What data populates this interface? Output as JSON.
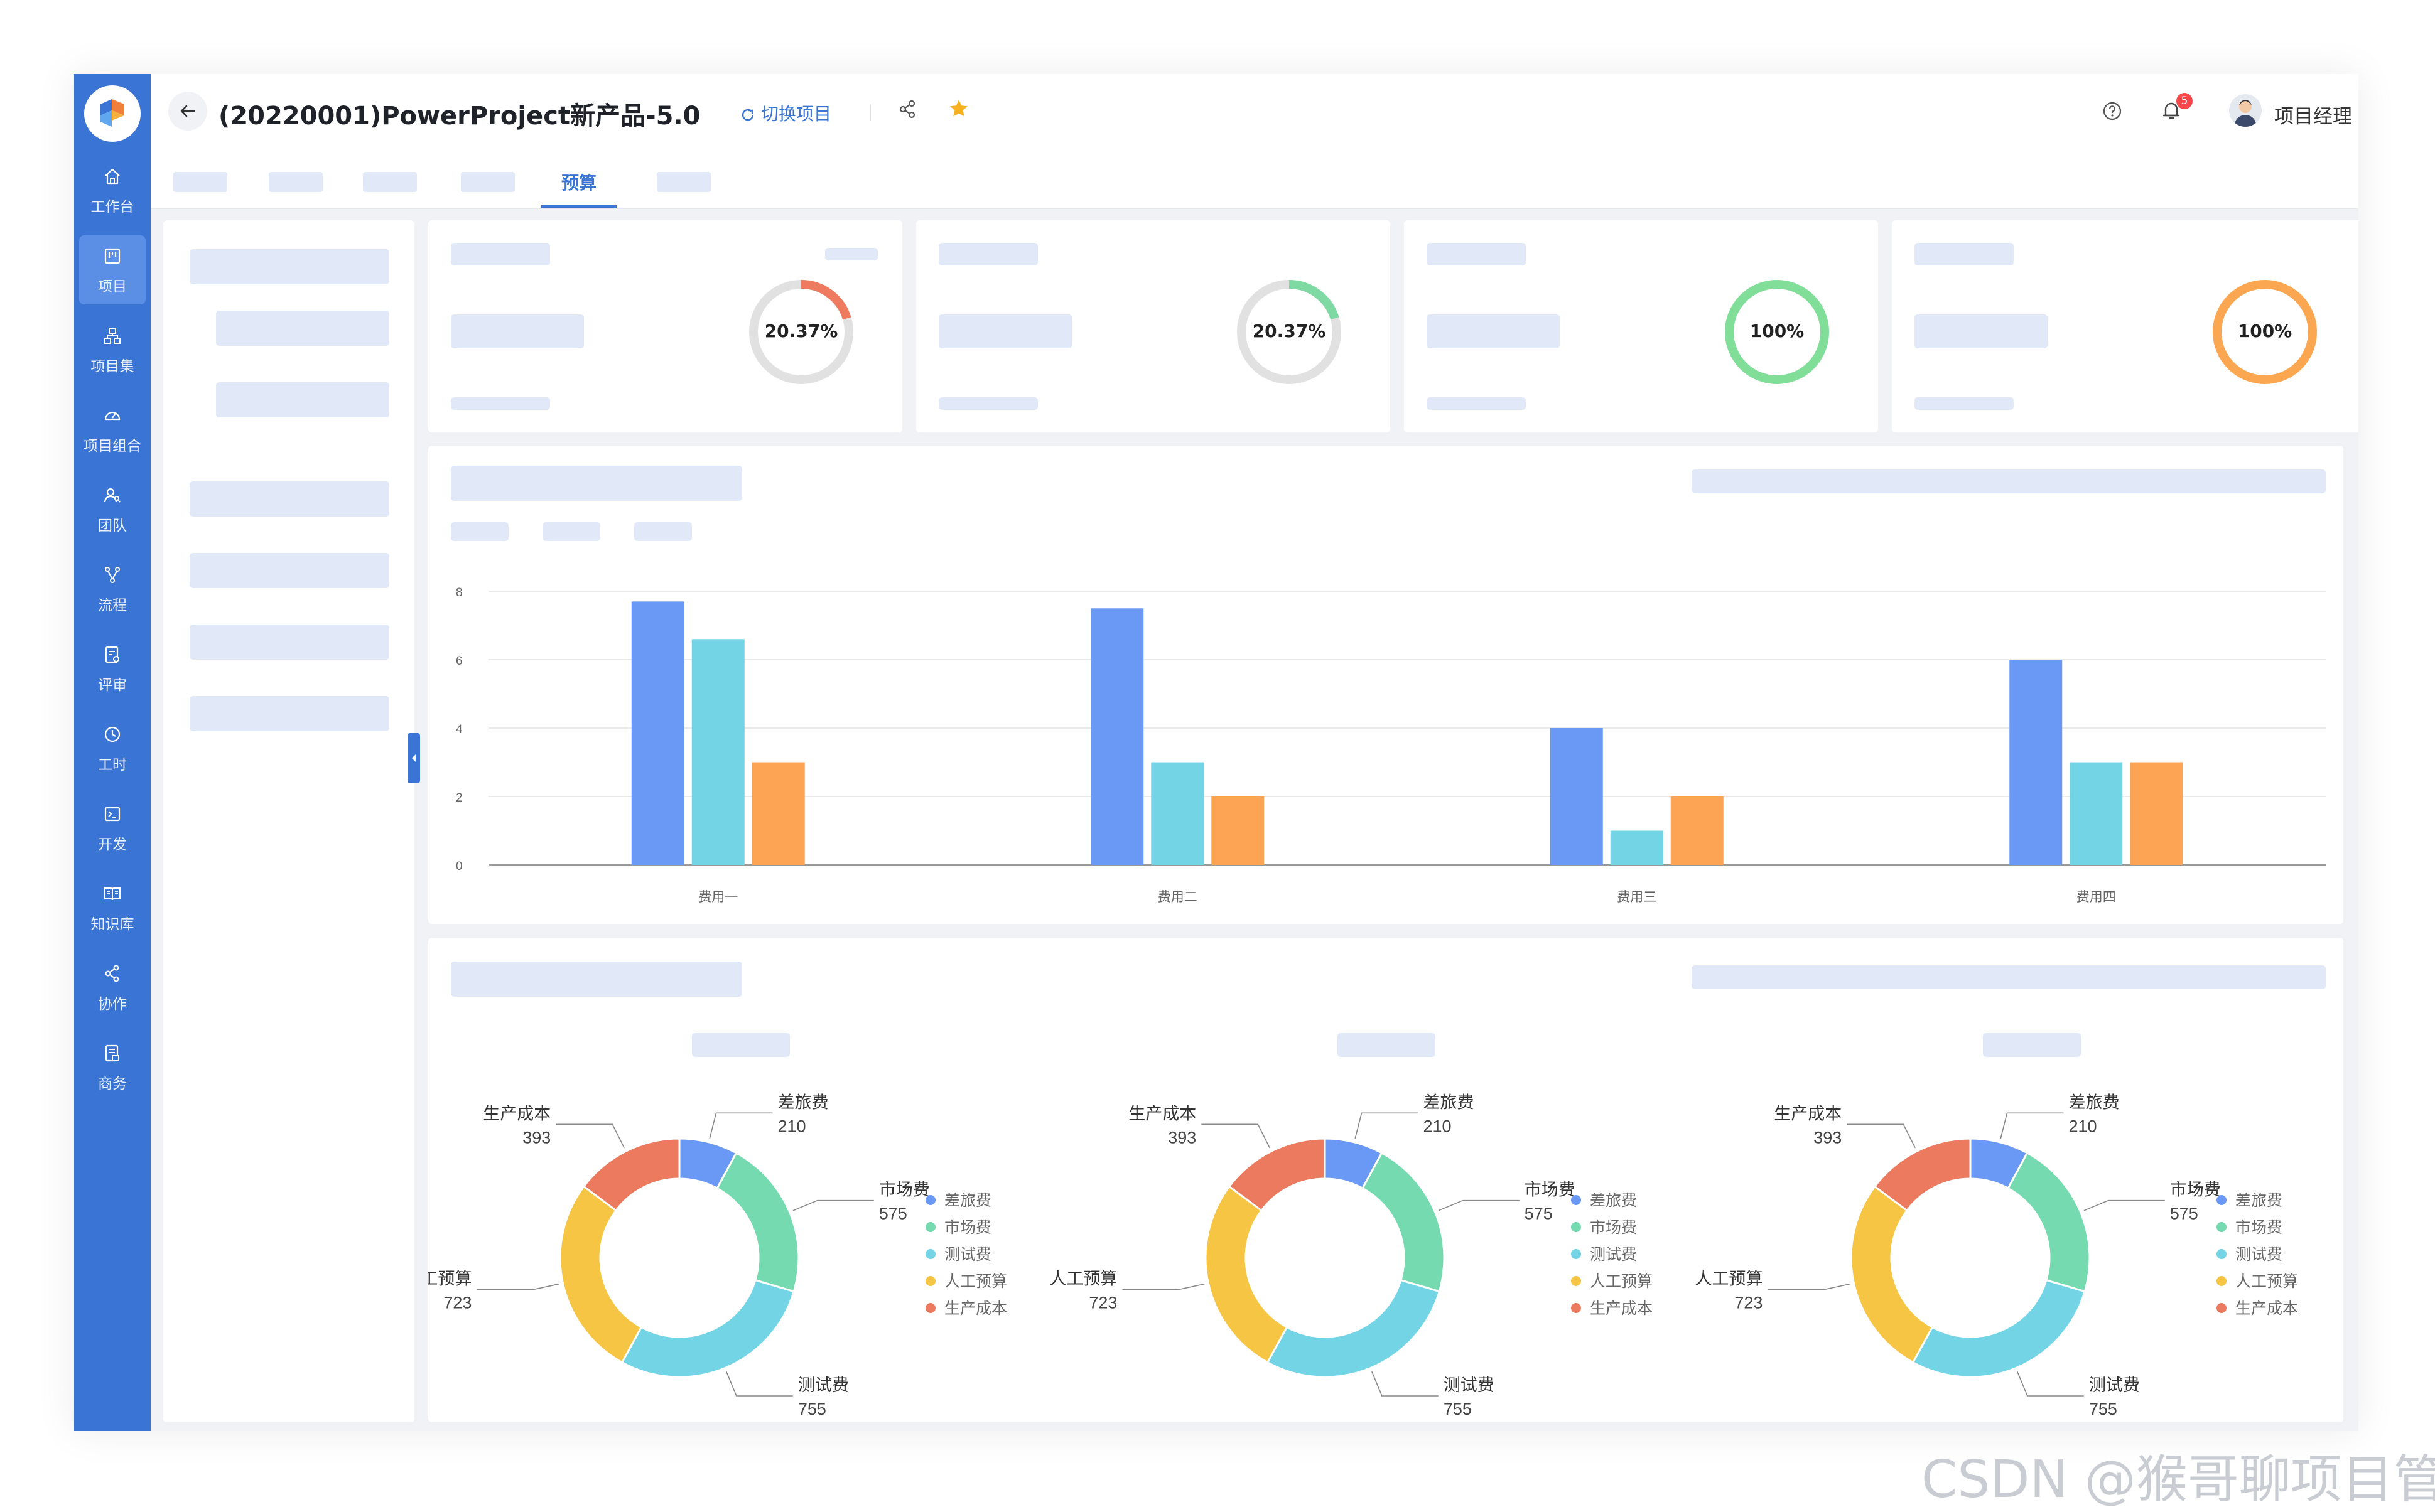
{
  "header": {
    "project_title": "(20220001)PowerProject新产品-5.0",
    "switch_label": "切换项目",
    "notification_count": "5",
    "user_name": "项目经理 PM"
  },
  "sidebar": {
    "items": [
      {
        "label": "工作台",
        "icon": "home-icon"
      },
      {
        "label": "项目",
        "icon": "kanban-icon",
        "active": true
      },
      {
        "label": "项目集",
        "icon": "hierarchy-icon"
      },
      {
        "label": "项目组合",
        "icon": "dashboard-icon"
      },
      {
        "label": "团队",
        "icon": "team-icon"
      },
      {
        "label": "流程",
        "icon": "flow-icon"
      },
      {
        "label": "评审",
        "icon": "review-icon"
      },
      {
        "label": "工时",
        "icon": "clock-icon"
      },
      {
        "label": "开发",
        "icon": "terminal-icon"
      },
      {
        "label": "知识库",
        "icon": "book-icon"
      },
      {
        "label": "协作",
        "icon": "share-icon"
      },
      {
        "label": "商务",
        "icon": "business-icon"
      }
    ]
  },
  "tabs": {
    "active_label": "预算"
  },
  "stats": [
    {
      "percent_label": "20.37%",
      "value": 0.2037,
      "color": "#ee7b5f"
    },
    {
      "percent_label": "20.37%",
      "value": 0.2037,
      "color": "#7ed9a3"
    },
    {
      "percent_label": "100%",
      "value": 1.0,
      "color": "#80de98"
    },
    {
      "percent_label": "100%",
      "value": 1.0,
      "color": "#fba752"
    }
  ],
  "colors": {
    "primary": "#3a74d4",
    "placeholder": "#e1e9f8"
  },
  "chart_data": [
    {
      "type": "bar",
      "categories": [
        "费用一",
        "费用二",
        "费用三",
        "费用四"
      ],
      "series": [
        {
          "values": [
            7.7,
            7.5,
            4,
            6
          ],
          "color": "#6a99f5"
        },
        {
          "values": [
            6.6,
            3,
            1,
            3
          ],
          "color": "#72d4e4"
        },
        {
          "values": [
            3,
            2,
            2,
            3
          ],
          "color": "#fca453"
        }
      ],
      "y_ticks": [
        "0",
        "2",
        "4",
        "6",
        "8"
      ],
      "ylim": [
        0,
        8
      ],
      "grid": true
    },
    {
      "type": "pie",
      "donut": true,
      "labels": [
        "差旅费",
        "市场费",
        "测试费",
        "人工预算",
        "生产成本"
      ],
      "values": [
        210,
        575,
        755,
        723,
        393
      ],
      "value_labels": [
        "210",
        "575",
        "755",
        "723",
        "393"
      ],
      "colors": [
        "#6a99f5",
        "#76dab0",
        "#72d4e4",
        "#f6c543",
        "#ec7a5f"
      ],
      "legend": "right"
    },
    {
      "type": "pie",
      "donut": true,
      "labels": [
        "差旅费",
        "市场费",
        "测试费",
        "人工预算",
        "生产成本"
      ],
      "values": [
        210,
        575,
        755,
        723,
        393
      ],
      "value_labels": [
        "210",
        "575",
        "755",
        "723",
        "393"
      ],
      "colors": [
        "#6a99f5",
        "#76dab0",
        "#72d4e4",
        "#f6c543",
        "#ec7a5f"
      ],
      "legend": "right"
    },
    {
      "type": "pie",
      "donut": true,
      "labels": [
        "差旅费",
        "市场费",
        "测试费",
        "人工预算",
        "生产成本"
      ],
      "values": [
        210,
        575,
        755,
        723,
        393
      ],
      "value_labels": [
        "210",
        "575",
        "755",
        "723",
        "393"
      ],
      "colors": [
        "#6a99f5",
        "#76dab0",
        "#72d4e4",
        "#f6c543",
        "#ec7a5f"
      ],
      "legend": "right"
    }
  ],
  "watermark": "CSDN @猴哥聊项目管理"
}
